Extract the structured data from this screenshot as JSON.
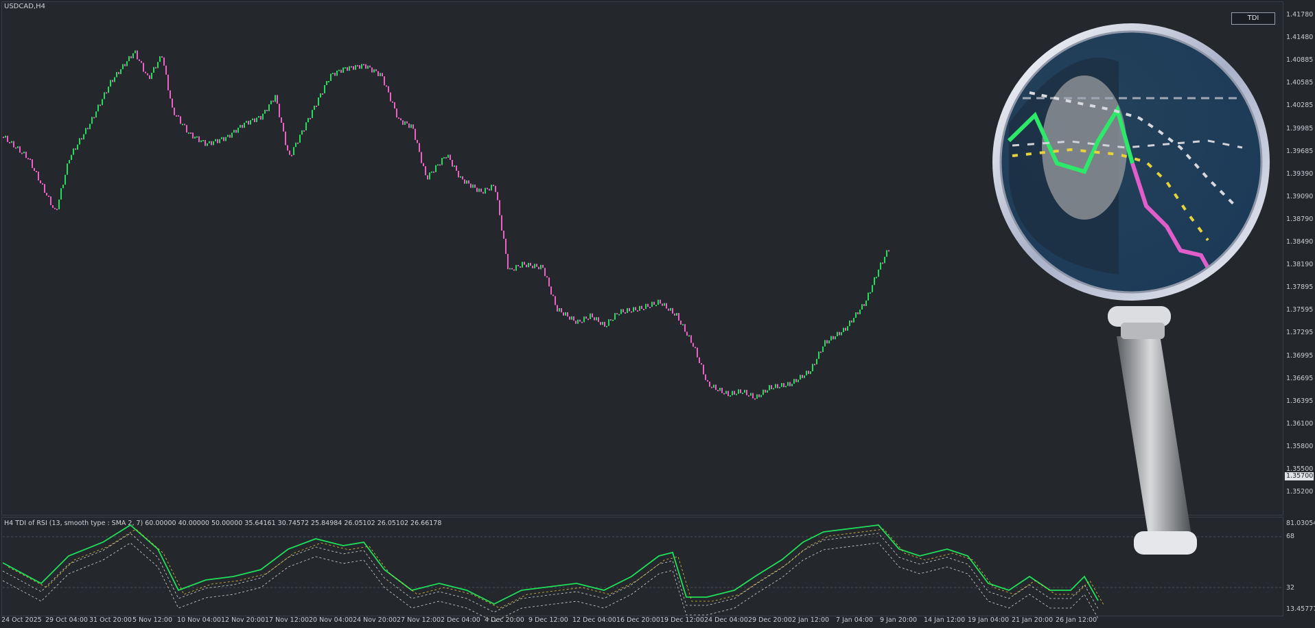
{
  "chart": {
    "symbol_label": "USDCAD,H4",
    "button_label": "TDI",
    "current_price": "1.35700",
    "price_ticks": [
      "1.41780",
      "1.41480",
      "1.40885",
      "1.40585",
      "1.40285",
      "1.39985",
      "1.39685",
      "1.39390",
      "1.39090",
      "1.38790",
      "1.38490",
      "1.38190",
      "1.37895",
      "1.37595",
      "1.37295",
      "1.36995",
      "1.36695",
      "1.36395",
      "1.36100",
      "1.35800",
      "1.35500",
      "1.35200"
    ],
    "time_ticks": [
      "24 Oct 2025",
      "29 Oct 04:00",
      "31 Oct 20:00",
      "5 Nov 12:00",
      "10 Nov 04:00",
      "12 Nov 20:00",
      "17 Nov 12:00",
      "20 Nov 04:00",
      "24 Nov 20:00",
      "27 Nov 12:00",
      "2 Dec 04:00",
      "4 Dec 20:00",
      "9 Dec 12:00",
      "12 Dec 04:00",
      "16 Dec 20:00",
      "19 Dec 12:00",
      "24 Dec 04:00",
      "29 Dec 20:00",
      "2 Jan 12:00",
      "7 Jan 04:00",
      "9 Jan 20:00",
      "14 Jan 12:00",
      "19 Jan 04:00",
      "21 Jan 20:00",
      "26 Jan 12:00"
    ],
    "colors": {
      "bull": "#1fe05a",
      "bear": "#f060c8",
      "background": "#24272c"
    }
  },
  "indicator": {
    "label": "H4 TDI of RSI  (13, smooth type : SMA 2, 7) 60.00000 40.00000 50.00000 35.64161 30.74572 25.84984 26.05102 26.05102 26.66178",
    "ticks": [
      "81.03054",
      "68",
      "32",
      "13.45777"
    ]
  },
  "overlay": {
    "icon": "magnifier-icon"
  }
}
